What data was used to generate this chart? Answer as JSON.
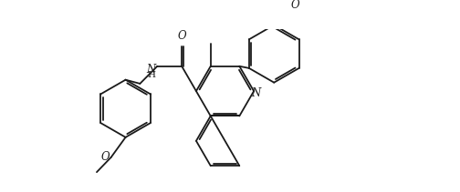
{
  "background_color": "#ffffff",
  "line_color": "#1a1a1a",
  "line_width": 1.3,
  "fig_width": 5.04,
  "fig_height": 2.11,
  "dpi": 100,
  "xlim": [
    0,
    10.1
  ],
  "ylim": [
    0,
    4.22
  ]
}
